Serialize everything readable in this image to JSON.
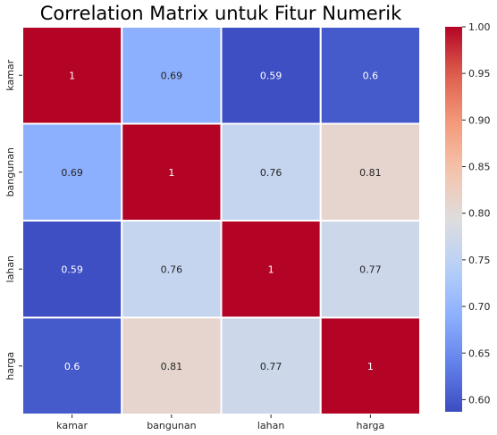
{
  "chart_data": {
    "type": "heatmap",
    "title": "Correlation Matrix untuk Fitur Numerik",
    "x_labels": [
      "kamar",
      "bangunan",
      "lahan",
      "harga"
    ],
    "y_labels": [
      "kamar",
      "bangunan",
      "lahan",
      "harga"
    ],
    "values": [
      [
        1,
        0.69,
        0.59,
        0.6
      ],
      [
        0.69,
        1,
        0.76,
        0.81
      ],
      [
        0.59,
        0.76,
        1,
        0.77
      ],
      [
        0.6,
        0.81,
        0.77,
        1
      ]
    ],
    "cell_labels": [
      [
        "1",
        "0.69",
        "0.59",
        "0.6"
      ],
      [
        "0.69",
        "1",
        "0.76",
        "0.81"
      ],
      [
        "0.59",
        "0.76",
        "1",
        "0.77"
      ],
      [
        "0.6",
        "0.81",
        "0.77",
        "1"
      ]
    ],
    "colormap": "coolwarm",
    "colorbar": {
      "min": 0.587,
      "max": 1.0,
      "ticks": [
        0.6,
        0.65,
        0.7,
        0.75,
        0.8,
        0.85,
        0.9,
        0.95,
        1.0
      ],
      "tick_labels": [
        "0.60",
        "0.65",
        "0.70",
        "0.75",
        "0.80",
        "0.85",
        "0.90",
        "0.95",
        "1.00"
      ]
    },
    "colors": {
      "cell_border": "#ffffff",
      "dark_text": "#262626",
      "light_text": "#ffffff",
      "axis_text": "#262626"
    }
  }
}
